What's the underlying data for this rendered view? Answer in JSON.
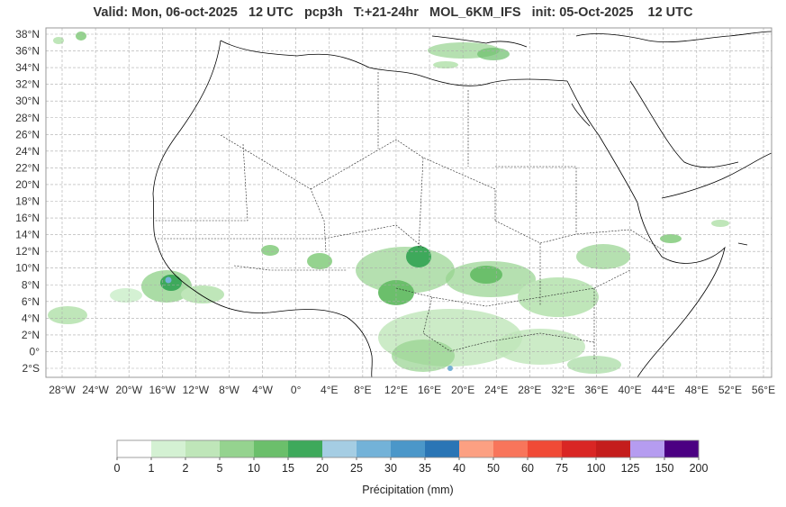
{
  "title": "Valid: Mon, 06-oct-2025   12 UTC   pcp3h   T:+21-24hr   MOL_6KM_IFS   init: 05-Oct-2025    12 UTC",
  "lat_labels": [
    "38°N",
    "36°N",
    "34°N",
    "32°N",
    "30°N",
    "28°N",
    "26°N",
    "24°N",
    "22°N",
    "20°N",
    "18°N",
    "16°N",
    "14°N",
    "12°N",
    "10°N",
    "8°N",
    "6°N",
    "4°N",
    "2°N",
    "0°",
    "2°S"
  ],
  "lat_values": [
    38,
    36,
    34,
    32,
    30,
    28,
    26,
    24,
    22,
    20,
    18,
    16,
    14,
    12,
    10,
    8,
    6,
    4,
    2,
    0,
    -2
  ],
  "lon_labels": [
    "28°W",
    "24°W",
    "20°W",
    "16°W",
    "12°W",
    "8°W",
    "4°W",
    "0°",
    "4°E",
    "8°E",
    "12°E",
    "16°E",
    "20°E",
    "24°E",
    "28°E",
    "32°E",
    "36°E",
    "40°E",
    "44°E",
    "48°E",
    "52°E",
    "56°E"
  ],
  "lon_values": [
    -28,
    -24,
    -20,
    -16,
    -12,
    -8,
    -4,
    0,
    4,
    8,
    12,
    16,
    20,
    24,
    28,
    32,
    36,
    40,
    44,
    48,
    52,
    56
  ],
  "colorbar": {
    "title": "Précipitation (mm)",
    "ticks": [
      "0",
      "1",
      "2",
      "5",
      "10",
      "15",
      "20",
      "25",
      "30",
      "35",
      "40",
      "50",
      "60",
      "75",
      "100",
      "125",
      "150",
      "200"
    ],
    "colors": [
      "#ffffff",
      "#d4f1d3",
      "#bfe6b9",
      "#95d38f",
      "#6bbf6b",
      "#3ea95b",
      "#a5cde3",
      "#73b2d8",
      "#4b97c9",
      "#2a75b5",
      "#fca082",
      "#f8755b",
      "#f04a36",
      "#d92624",
      "#c41d1c",
      "#b59cf0",
      "#4b0082"
    ]
  },
  "colors": {
    "grid": "#aaaaaa",
    "coast": "#000000",
    "frame": "#999999"
  }
}
